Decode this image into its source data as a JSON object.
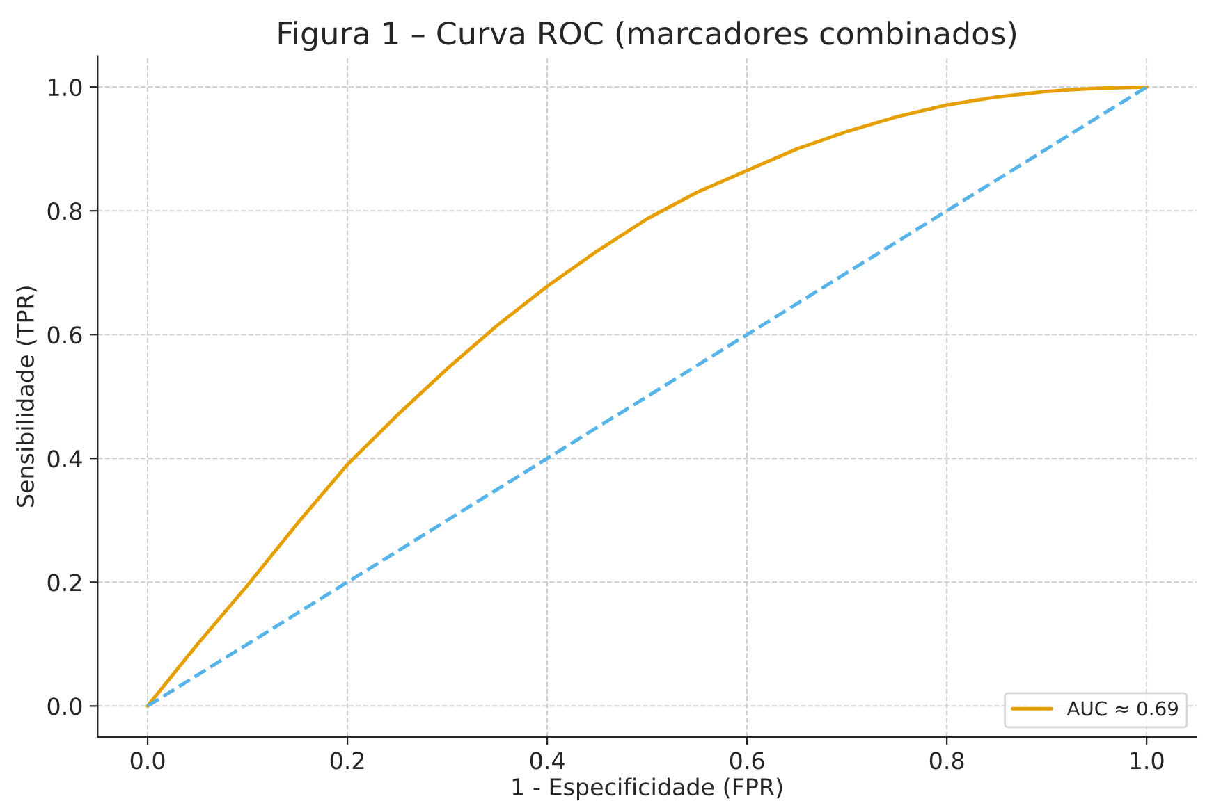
{
  "chart_data": {
    "type": "line",
    "title": "Figura 1 – Curva ROC (marcadores combinados)",
    "xlabel": "1 - Especificidade (FPR)",
    "ylabel": "Sensibilidade (TPR)",
    "series": [
      {
        "name": "AUC ≈ 0.69",
        "color": "#e69f00",
        "line_style": "solid",
        "x": [
          0,
          0.05,
          0.1,
          0.15,
          0.2,
          0.25,
          0.3,
          0.35,
          0.4,
          0.45,
          0.5,
          0.55,
          0.6,
          0.65,
          0.7,
          0.75,
          0.8,
          0.85,
          0.9,
          0.95,
          1.0
        ],
        "values": [
          0,
          0.1,
          0.195,
          0.295,
          0.39,
          0.47,
          0.545,
          0.615,
          0.678,
          0.735,
          0.787,
          0.83,
          0.865,
          0.9,
          0.928,
          0.952,
          0.971,
          0.984,
          0.993,
          0.998,
          1.0
        ]
      },
      {
        "color": "#56b4e9",
        "line_style": "dashed",
        "x": [
          0,
          1
        ],
        "values": [
          0,
          1
        ]
      }
    ],
    "xlim": [
      -0.05,
      1.05
    ],
    "ylim": [
      -0.05,
      1.05
    ],
    "xticks": [
      {
        "value": 0,
        "label": "0.0"
      },
      {
        "value": 0.2,
        "label": "0.2"
      },
      {
        "value": 0.4,
        "label": "0.4"
      },
      {
        "value": 0.6,
        "label": "0.6"
      },
      {
        "value": 0.8,
        "label": "0.8"
      },
      {
        "value": 1.0,
        "label": "1.0"
      }
    ],
    "yticks": [
      {
        "value": 0,
        "label": "0.0"
      },
      {
        "value": 0.2,
        "label": "0.2"
      },
      {
        "value": 0.4,
        "label": "0.4"
      },
      {
        "value": 0.6,
        "label": "0.6"
      },
      {
        "value": 0.8,
        "label": "0.8"
      },
      {
        "value": 1.0,
        "label": "1.0"
      }
    ],
    "grid": true,
    "legend": "lower right",
    "marker": "none"
  }
}
